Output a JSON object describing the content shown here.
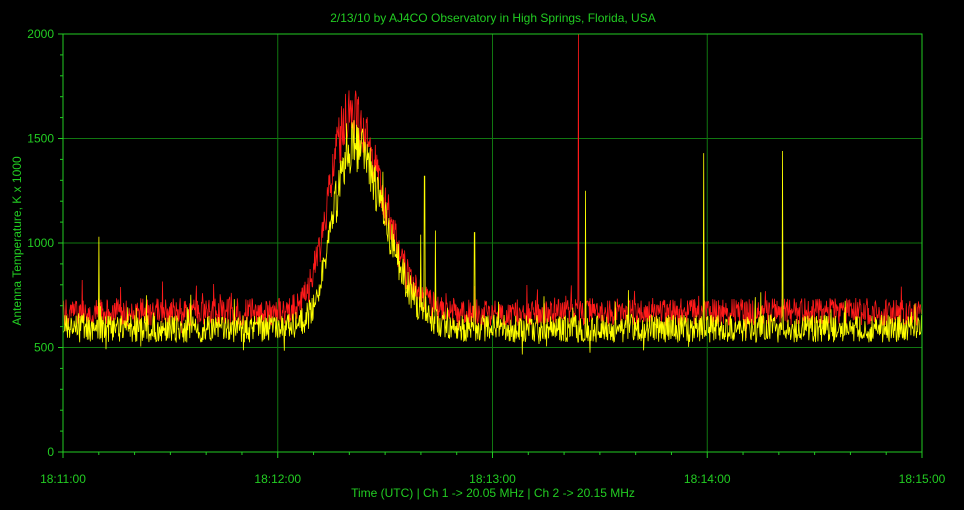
{
  "chart_data": {
    "type": "line",
    "title": "2/13/10  by  AJ4CO Observatory  in  High Springs, Florida, USA",
    "xlabel": "Time (UTC)  |  Ch 1 -> 20.05 MHz  |  Ch 2 -> 20.15 MHz",
    "ylabel": "Antenna Temperature, K x 1000",
    "x_ticks": [
      "18:11:00",
      "18:12:00",
      "18:13:00",
      "18:14:00",
      "18:15:00"
    ],
    "y_ticks": [
      "0",
      "500",
      "1000",
      "1500",
      "2000"
    ],
    "xlim_seconds_after_181100": [
      0,
      240
    ],
    "ylim": [
      0,
      2000
    ],
    "grid": true,
    "colors": {
      "background": "#000000",
      "axes": "#22cc22",
      "grid": "#117711"
    },
    "series": [
      {
        "color": "#ff1a1a",
        "baseline_range": [
          640,
          700
        ],
        "burst": {
          "peak_time": "18:12:20",
          "peak_value": 1620
        },
        "spikes": [
          {
            "time": "18:13:24",
            "value": 2000
          }
        ]
      },
      {
        "color": "#ffff00",
        "baseline_range": [
          560,
          620
        ],
        "burst": {
          "peak_time": "18:12:21",
          "peak_value": 1460
        },
        "spikes": [
          {
            "time": "18:11:10",
            "value": 1030
          },
          {
            "time": "18:12:44",
            "value": 1060
          },
          {
            "time": "18:12:40",
            "value": 1040
          },
          {
            "time": "18:12:41",
            "value": 1320
          },
          {
            "time": "18:12:55",
            "value": 1050
          },
          {
            "time": "18:13:26",
            "value": 1250
          },
          {
            "time": "18:13:59",
            "value": 1430
          },
          {
            "time": "18:14:21",
            "value": 1440
          }
        ]
      }
    ]
  }
}
